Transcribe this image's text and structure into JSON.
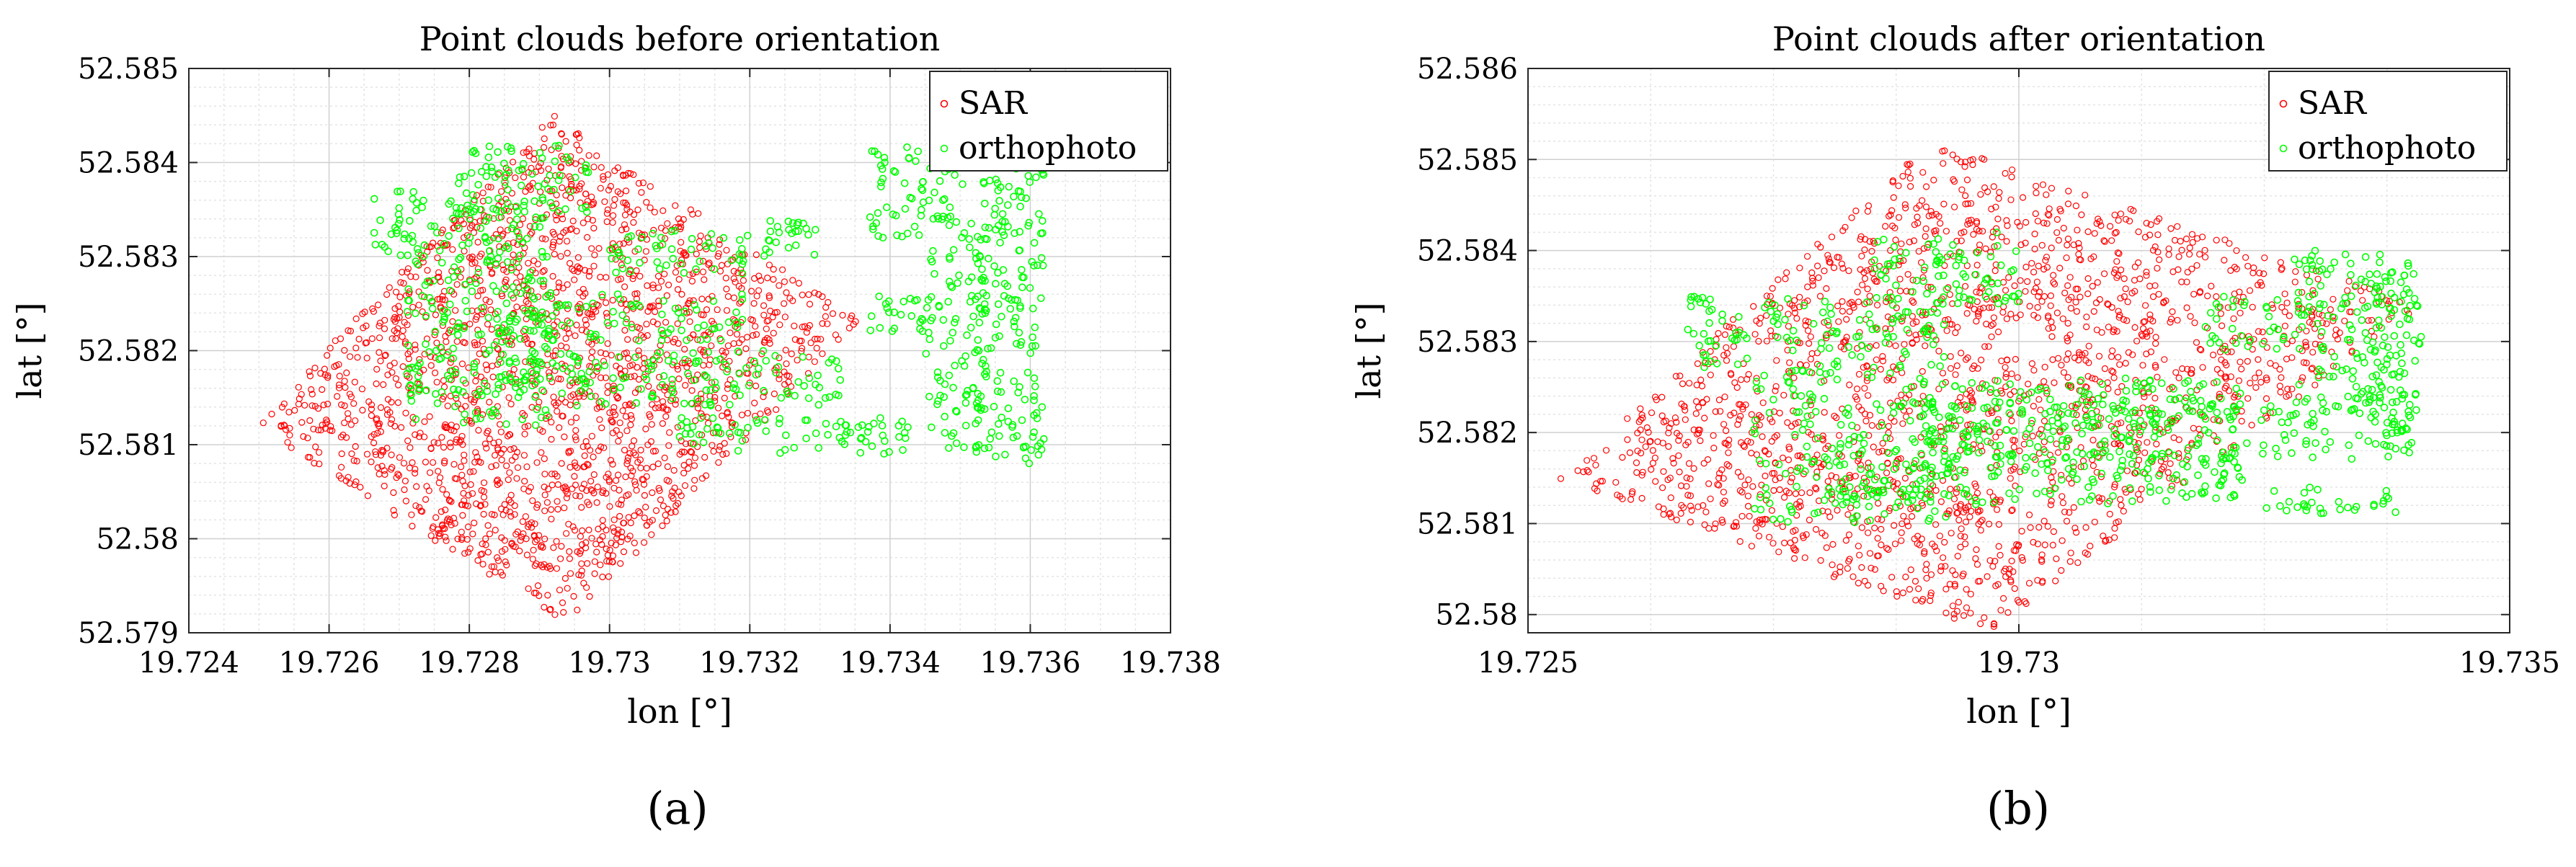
{
  "chart_data": [
    {
      "type": "scatter",
      "title": "Point clouds before orientation",
      "xlabel": "lon [°]",
      "ylabel": "lat [°]",
      "xlim": [
        19.724,
        19.738
      ],
      "ylim": [
        52.579,
        52.585
      ],
      "xticks": [
        "19.724",
        "19.726",
        "19.728",
        "19.73",
        "19.732",
        "19.734",
        "19.736",
        "19.738"
      ],
      "yticks": [
        "52.579",
        "52.58",
        "52.581",
        "52.582",
        "52.583",
        "52.584",
        "52.585"
      ],
      "grid": true,
      "legend_position": "top-right",
      "caption": "(a)",
      "series": [
        {
          "name": "SAR",
          "color": "#ff0000",
          "marker": "circle",
          "region": {
            "shape": "rotated-rectangle",
            "corners": [
              [
                19.7249,
                52.5812
              ],
              [
                19.7292,
                52.5845
              ],
              [
                19.7336,
                52.5823
              ],
              [
                19.7294,
                52.5791
              ]
            ]
          }
        },
        {
          "name": "orthophoto",
          "color": "#00ff00",
          "marker": "circle",
          "clusters": [
            {
              "x": [
                19.7271,
                19.7292
              ],
              "y": [
                52.5812,
                52.5836
              ]
            },
            {
              "x": [
                19.7278,
                19.7297
              ],
              "y": [
                52.5834,
                52.5842
              ]
            },
            {
              "x": [
                19.7266,
                19.7273
              ],
              "y": [
                52.583,
                52.5837
              ]
            },
            {
              "x": [
                19.7282,
                19.7333
              ],
              "y": [
                52.5814,
                52.582
              ]
            },
            {
              "x": [
                19.7283,
                19.7319
              ],
              "y": [
                52.5821,
                52.5826
              ]
            },
            {
              "x": [
                19.7322,
                19.733
              ],
              "y": [
                52.583,
                52.5834
              ]
            },
            {
              "x": [
                19.73,
                19.732
              ],
              "y": [
                52.5828,
                52.5833
              ]
            },
            {
              "x": [
                19.7309,
                19.7353
              ],
              "y": [
                52.5809,
                52.5813
              ]
            },
            {
              "x": [
                19.7337,
                19.7362
              ],
              "y": [
                52.5832,
                52.5842
              ]
            },
            {
              "x": [
                19.7345,
                19.7354
              ],
              "y": [
                52.5813,
                52.5832
              ]
            },
            {
              "x": [
                19.7352,
                19.7362
              ],
              "y": [
                52.5808,
                52.5834
              ]
            },
            {
              "x": [
                19.7337,
                19.7346
              ],
              "y": [
                52.5822,
                52.5826
              ]
            }
          ]
        }
      ]
    },
    {
      "type": "scatter",
      "title": "Point clouds after orientation",
      "xlabel": "lon [°]",
      "ylabel": "lat [°]",
      "xlim": [
        19.725,
        19.735
      ],
      "ylim": [
        52.5798,
        52.586
      ],
      "xticks": [
        "19.725",
        "19.73",
        "19.735"
      ],
      "yticks": [
        "52.58",
        "52.581",
        "52.582",
        "52.583",
        "52.584",
        "52.585",
        "52.586"
      ],
      "grid": true,
      "legend_position": "top-right",
      "caption": "(b)",
      "series": [
        {
          "name": "SAR",
          "color": "#ff0000",
          "marker": "circle",
          "region": {
            "shape": "rotated-rectangle",
            "corners": [
              [
                19.7253,
                52.5815
              ],
              [
                19.7291,
                52.5852
              ],
              [
                19.7341,
                52.5834
              ],
              [
                19.7297,
                52.5798
              ]
            ]
          }
        },
        {
          "name": "orthophoto",
          "color": "#00ff00",
          "marker": "circle",
          "clusters": [
            {
              "x": [
                19.7273,
                19.7293
              ],
              "y": [
                52.581,
                52.5835
              ]
            },
            {
              "x": [
                19.7266,
                19.7273
              ],
              "y": [
                52.5827,
                52.5835
              ]
            },
            {
              "x": [
                19.7285,
                19.73
              ],
              "y": [
                52.5834,
                52.5842
              ]
            },
            {
              "x": [
                19.728,
                19.7323
              ],
              "y": [
                52.5812,
                52.5818
              ]
            },
            {
              "x": [
                19.729,
                19.7323
              ],
              "y": [
                52.582,
                52.5826
              ]
            },
            {
              "x": [
                19.729,
                19.734
              ],
              "y": [
                52.5817,
                52.5823
              ]
            },
            {
              "x": [
                19.7319,
                19.7327
              ],
              "y": [
                52.5829,
                52.5835
              ]
            },
            {
              "x": [
                19.7325,
                19.734
              ],
              "y": [
                52.5811,
                52.5814
              ]
            },
            {
              "x": [
                19.7328,
                19.734
              ],
              "y": [
                52.5822,
                52.584
              ]
            },
            {
              "x": [
                19.7336,
                19.7341
              ],
              "y": [
                52.5819,
                52.5838
              ]
            }
          ]
        }
      ]
    }
  ]
}
